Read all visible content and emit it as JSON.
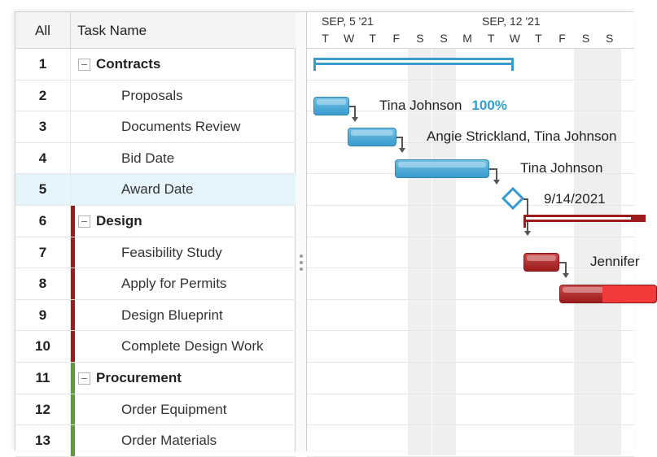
{
  "grid": {
    "header": {
      "all": "All",
      "task_name": "Task Name"
    },
    "rows": [
      {
        "num": "1",
        "name": "Contracts",
        "kind": "summary",
        "color": ""
      },
      {
        "num": "2",
        "name": "Proposals",
        "kind": "task",
        "color": ""
      },
      {
        "num": "3",
        "name": "Documents Review",
        "kind": "task",
        "color": ""
      },
      {
        "num": "4",
        "name": "Bid Date",
        "kind": "task",
        "color": ""
      },
      {
        "num": "5",
        "name": "Award Date",
        "kind": "task",
        "color": "",
        "selected": true
      },
      {
        "num": "6",
        "name": "Design",
        "kind": "summary",
        "color": "#9c1c1c"
      },
      {
        "num": "7",
        "name": "Feasibility Study",
        "kind": "task",
        "color": "#9c1c1c"
      },
      {
        "num": "8",
        "name": "Apply for Permits",
        "kind": "task",
        "color": "#9c1c1c"
      },
      {
        "num": "9",
        "name": "Design Blueprint",
        "kind": "task",
        "color": "#9c1c1c"
      },
      {
        "num": "10",
        "name": "Complete Design Work",
        "kind": "task",
        "color": "#9c1c1c"
      },
      {
        "num": "11",
        "name": "Procurement",
        "kind": "summary",
        "color": "#5e9c3a"
      },
      {
        "num": "12",
        "name": "Order Equipment",
        "kind": "task",
        "color": "#5e9c3a"
      },
      {
        "num": "13",
        "name": "Order Materials",
        "kind": "task",
        "color": "#5e9c3a"
      }
    ]
  },
  "timescale": {
    "weeks": [
      "SEP, 5 '21",
      "SEP, 12 '21"
    ],
    "days": [
      "T",
      "W",
      "T",
      "F",
      "S",
      "S",
      "M",
      "T",
      "W",
      "T",
      "F",
      "S",
      "S"
    ]
  },
  "labels": {
    "proposals": "Tina Johnson",
    "proposals_pct": "100%",
    "documents_review": "Angie Strickland, Tina Johnson",
    "bid_date": "Tina Johnson",
    "award_date": "9/14/2021",
    "feasibility": "Jennifer"
  },
  "colors": {
    "contracts": "#3a9ccd",
    "design": "#9c1c1c",
    "procurement": "#5e9c3a",
    "accent_pct": "#2e9fd6"
  }
}
